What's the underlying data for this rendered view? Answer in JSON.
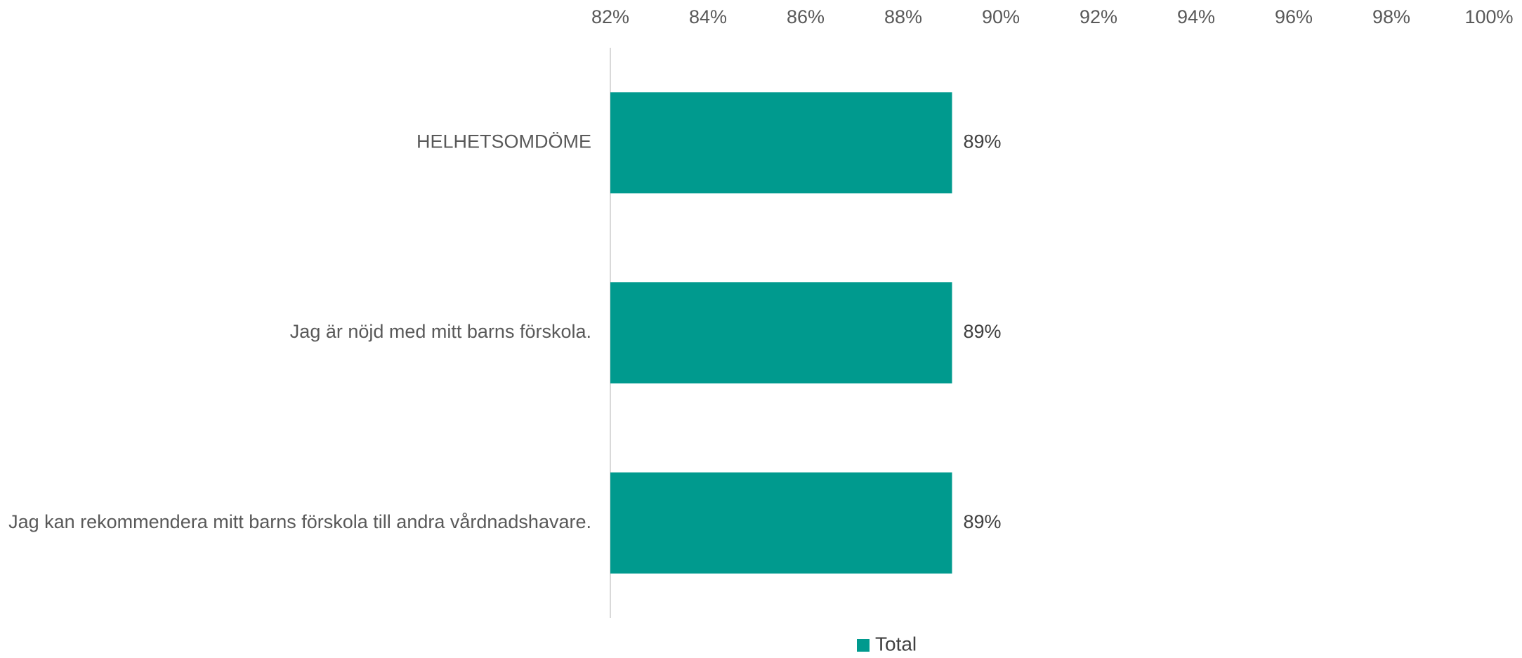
{
  "chart_data": {
    "type": "bar",
    "orientation": "horizontal",
    "title": "",
    "xlabel": "",
    "ylabel": "",
    "categories": [
      "HELHETSOMDÖME",
      "Jag är nöjd med mitt barns förskola.",
      "Jag kan rekommendera mitt barns förskola till andra vårdnadshavare."
    ],
    "series": [
      {
        "name": "Total",
        "values": [
          89,
          89,
          89
        ],
        "data_labels": [
          "89%",
          "89%",
          "89%"
        ],
        "color": "#009A8E"
      }
    ],
    "xlim": [
      82,
      100
    ],
    "xticks": [
      82,
      84,
      86,
      88,
      90,
      92,
      94,
      96,
      98,
      100
    ],
    "xtick_labels": [
      "82%",
      "84%",
      "86%",
      "88%",
      "90%",
      "92%",
      "94%",
      "96%",
      "98%",
      "100%"
    ],
    "x_axis_position": "top",
    "grid": false,
    "legend": {
      "position": "bottom",
      "entries": [
        "Total"
      ]
    }
  },
  "colors": {
    "bar": "#009A8E",
    "axis_line": "#D9D9D9",
    "tick_text": "#595959",
    "category_text": "#595959",
    "data_label_text": "#404040",
    "legend_text": "#404040"
  }
}
